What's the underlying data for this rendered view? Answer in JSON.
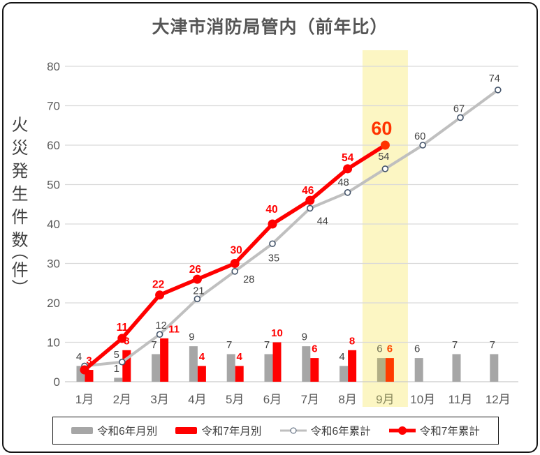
{
  "title": "大津市消防局管内（前年比）",
  "y_axis": {
    "title": "火災発生件数",
    "unit": "（件）"
  },
  "legend": [
    "令和6年月別",
    "令和7年月別",
    "令和6年累計",
    "令和7年累計"
  ],
  "colors": {
    "bar_r6": "#A6A6A6",
    "bar_r7": "#FF0000",
    "line_r6": "#BFBFBF",
    "line_r6_marker_stroke": "#44546A",
    "line_r7": "#FF0000",
    "highlight_band": "#FCF6C3",
    "gray_label": "#404040",
    "red_label": "#FF0000",
    "axis_text": "#595959",
    "gridline": "#D9D9D9",
    "zero_line": "#C9C9C9",
    "title_text": "#555555",
    "tint_bar_gray": "#B1AE85",
    "tint_bar_red": "#FF3B00",
    "tint_label_gray": "#6E6E52",
    "tint_label_red": "#FF4800",
    "tint_xlabel": "#8A8A5E",
    "tint_marker_red": "#FF3300",
    "big_label_red": "#FF3300"
  },
  "chart_data": {
    "type": "combo-bar-line",
    "categories": [
      "1月",
      "2月",
      "3月",
      "4月",
      "5月",
      "6月",
      "7月",
      "8月",
      "9月",
      "10月",
      "11月",
      "12月"
    ],
    "series": [
      {
        "name": "令和6年月別",
        "type": "bar",
        "values": [
          4,
          1,
          7,
          9,
          7,
          7,
          9,
          4,
          6,
          6,
          7,
          7
        ]
      },
      {
        "name": "令和7年月別",
        "type": "bar",
        "values": [
          3,
          8,
          11,
          4,
          4,
          10,
          6,
          8,
          6,
          null,
          null,
          null
        ]
      },
      {
        "name": "令和6年累計",
        "type": "line",
        "values": [
          4,
          5,
          12,
          21,
          28,
          35,
          44,
          48,
          54,
          60,
          67,
          74
        ]
      },
      {
        "name": "令和7年累計",
        "type": "line",
        "values": [
          3,
          11,
          22,
          26,
          30,
          40,
          46,
          54,
          60,
          null,
          null,
          null
        ]
      }
    ],
    "ylim": [
      0,
      80
    ],
    "ytick_step": 10,
    "grid": "horizontal",
    "legend_position": "bottom",
    "highlight_category": "9月",
    "emphasized_value": {
      "series": "令和7年累計",
      "category": "9月",
      "value": 60
    }
  }
}
